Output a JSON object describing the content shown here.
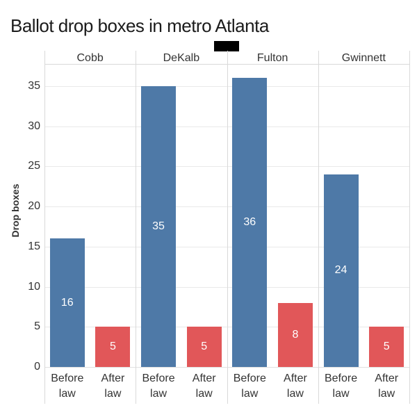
{
  "title": "Ballot drop boxes in metro Atlanta",
  "chart_data": {
    "type": "bar",
    "title": "Ballot drop boxes in metro Atlanta",
    "ylabel": "Drop boxes",
    "xlabel": "",
    "ylim": [
      0,
      37.5
    ],
    "yticks": [
      0,
      5,
      10,
      15,
      20,
      25,
      30,
      35
    ],
    "grid": true,
    "legend_position": "none",
    "categories": [
      "Before law",
      "After law"
    ],
    "series_colors": [
      "#4e79a7",
      "#e15759"
    ],
    "bar_value_label_color": "#ffffff",
    "panels": [
      {
        "label": "Cobb",
        "values": [
          16,
          5
        ]
      },
      {
        "label": "DeKalb",
        "values": [
          35,
          5
        ]
      },
      {
        "label": "Fulton",
        "values": [
          36,
          8
        ]
      },
      {
        "label": "Gwinnett",
        "values": [
          24,
          5
        ]
      }
    ]
  }
}
